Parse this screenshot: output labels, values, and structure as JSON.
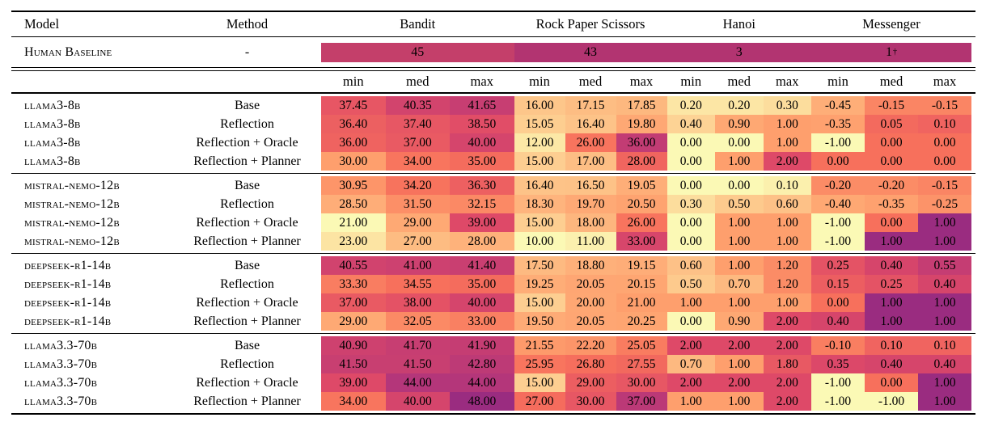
{
  "table": {
    "header": {
      "model": "Model",
      "method": "Method"
    },
    "games": [
      {
        "name": "Bandit",
        "baseline_value": "45",
        "baseline_superscript": "",
        "baseline_color": "#c43f6a",
        "vmin": 21,
        "vmax": 48
      },
      {
        "name": "Rock Paper Scissors",
        "baseline_value": "43",
        "baseline_superscript": "",
        "baseline_color": "#b23471",
        "vmin": 10,
        "vmax": 43
      },
      {
        "name": "Hanoi",
        "baseline_value": "3",
        "baseline_superscript": "",
        "baseline_color": "#b23471",
        "vmin": 0,
        "vmax": 3
      },
      {
        "name": "Messenger",
        "baseline_value": "1",
        "baseline_superscript": "†",
        "baseline_color": "#b23471",
        "vmin": -1,
        "vmax": 1
      }
    ],
    "subheader": [
      "min",
      "med",
      "max"
    ],
    "baseline_row": {
      "model": "Human Baseline",
      "method": "-"
    },
    "heatmap_colormap_stops": [
      "#fbf9b5",
      "#fdca8d",
      "#fe9f6d",
      "#f7705c",
      "#de4968",
      "#b73779",
      "#9a2c80"
    ],
    "groups": [
      {
        "model": "llama3-8b",
        "rows": [
          {
            "method": "Base",
            "values": [
              "37.45",
              "40.35",
              "41.65",
              "16.00",
              "17.15",
              "17.85",
              "0.20",
              "0.20",
              "0.30",
              "-0.45",
              "-0.15",
              "-0.15"
            ]
          },
          {
            "method": "Reflection",
            "values": [
              "36.40",
              "37.40",
              "38.50",
              "15.05",
              "16.40",
              "19.80",
              "0.40",
              "0.90",
              "1.00",
              "-0.35",
              "0.05",
              "0.10"
            ]
          },
          {
            "method": "Reflection + Oracle",
            "values": [
              "36.00",
              "37.00",
              "40.00",
              "12.00",
              "26.00",
              "36.00",
              "0.00",
              "0.00",
              "1.00",
              "-1.00",
              "0.00",
              "0.00"
            ]
          },
          {
            "method": "Reflection + Planner",
            "values": [
              "30.00",
              "34.00",
              "35.00",
              "15.00",
              "17.00",
              "28.00",
              "0.00",
              "1.00",
              "2.00",
              "0.00",
              "0.00",
              "0.00"
            ]
          }
        ]
      },
      {
        "model": "mistral-nemo-12b",
        "rows": [
          {
            "method": "Base",
            "values": [
              "30.95",
              "34.20",
              "36.30",
              "16.40",
              "16.50",
              "19.05",
              "0.00",
              "0.00",
              "0.10",
              "-0.20",
              "-0.20",
              "-0.15"
            ]
          },
          {
            "method": "Reflection",
            "values": [
              "28.50",
              "31.50",
              "32.15",
              "18.30",
              "19.70",
              "20.50",
              "0.30",
              "0.50",
              "0.60",
              "-0.40",
              "-0.35",
              "-0.25"
            ]
          },
          {
            "method": "Reflection + Oracle",
            "values": [
              "21.00",
              "29.00",
              "39.00",
              "15.00",
              "18.00",
              "26.00",
              "0.00",
              "1.00",
              "1.00",
              "-1.00",
              "0.00",
              "1.00"
            ]
          },
          {
            "method": "Reflection + Planner",
            "values": [
              "23.00",
              "27.00",
              "28.00",
              "10.00",
              "11.00",
              "33.00",
              "0.00",
              "1.00",
              "1.00",
              "-1.00",
              "1.00",
              "1.00"
            ]
          }
        ]
      },
      {
        "model": "deepseek-r1-14b",
        "rows": [
          {
            "method": "Base",
            "values": [
              "40.55",
              "41.00",
              "41.40",
              "17.50",
              "18.80",
              "19.15",
              "0.60",
              "1.00",
              "1.20",
              "0.25",
              "0.40",
              "0.55"
            ]
          },
          {
            "method": "Reflection",
            "values": [
              "33.30",
              "34.55",
              "35.00",
              "19.25",
              "20.05",
              "20.15",
              "0.50",
              "0.70",
              "1.20",
              "0.15",
              "0.25",
              "0.40"
            ]
          },
          {
            "method": "Reflection + Oracle",
            "values": [
              "37.00",
              "38.00",
              "40.00",
              "15.00",
              "20.00",
              "21.00",
              "1.00",
              "1.00",
              "1.00",
              "0.00",
              "1.00",
              "1.00"
            ]
          },
          {
            "method": "Reflection + Planner",
            "values": [
              "29.00",
              "32.05",
              "33.00",
              "19.50",
              "20.05",
              "20.25",
              "0.00",
              "0.90",
              "2.00",
              "0.40",
              "1.00",
              "1.00"
            ]
          }
        ]
      },
      {
        "model": "llama3.3-70b",
        "rows": [
          {
            "method": "Base",
            "values": [
              "40.90",
              "41.70",
              "41.90",
              "21.55",
              "22.20",
              "25.05",
              "2.00",
              "2.00",
              "2.00",
              "-0.10",
              "0.10",
              "0.10"
            ]
          },
          {
            "method": "Reflection",
            "values": [
              "41.50",
              "41.50",
              "42.80",
              "25.95",
              "26.80",
              "27.55",
              "0.70",
              "1.00",
              "1.80",
              "0.35",
              "0.40",
              "0.40"
            ]
          },
          {
            "method": "Reflection + Oracle",
            "values": [
              "39.00",
              "44.00",
              "44.00",
              "15.00",
              "29.00",
              "30.00",
              "2.00",
              "2.00",
              "2.00",
              "-1.00",
              "0.00",
              "1.00"
            ]
          },
          {
            "method": "Reflection + Planner",
            "values": [
              "34.00",
              "40.00",
              "48.00",
              "27.00",
              "30.00",
              "37.00",
              "1.00",
              "1.00",
              "2.00",
              "-1.00",
              "-1.00",
              "1.00"
            ]
          }
        ]
      }
    ]
  }
}
